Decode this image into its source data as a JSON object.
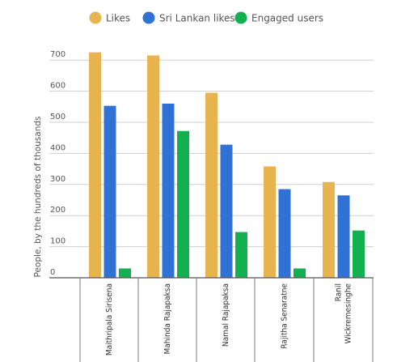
{
  "chart_data": {
    "type": "bar",
    "categories": [
      "Maithripala Sirisena",
      "Mahinda Rajapaksa",
      "Namal Rajapaksa",
      "Rajitha Senaratne",
      "Ranil Wickremesinghe"
    ],
    "category_lines": [
      [
        "Maithripala Sirisena"
      ],
      [
        "Mahinda Rajapaksa"
      ],
      [
        "Namal Rajapaksa"
      ],
      [
        "Rajitha Senaratne"
      ],
      [
        "Ranil",
        "Wickremesinghe"
      ]
    ],
    "series": [
      {
        "name": "Likes",
        "color": "#e8b450",
        "values": [
          725,
          715,
          595,
          358,
          308
        ]
      },
      {
        "name": "Sri Lankan likes",
        "color": "#3071d6",
        "values": [
          553,
          560,
          428,
          285,
          265
        ]
      },
      {
        "name": "Engaged users",
        "color": "#13b04f",
        "values": [
          30,
          472,
          147,
          30,
          152
        ]
      }
    ],
    "ylabel": "People, by the hundreds of thousands",
    "xlabel": "",
    "ylim": [
      0,
      750
    ],
    "yticks": [
      0,
      100,
      200,
      300,
      400,
      500,
      600,
      700
    ],
    "grid": true,
    "legend_position": "top-center"
  }
}
